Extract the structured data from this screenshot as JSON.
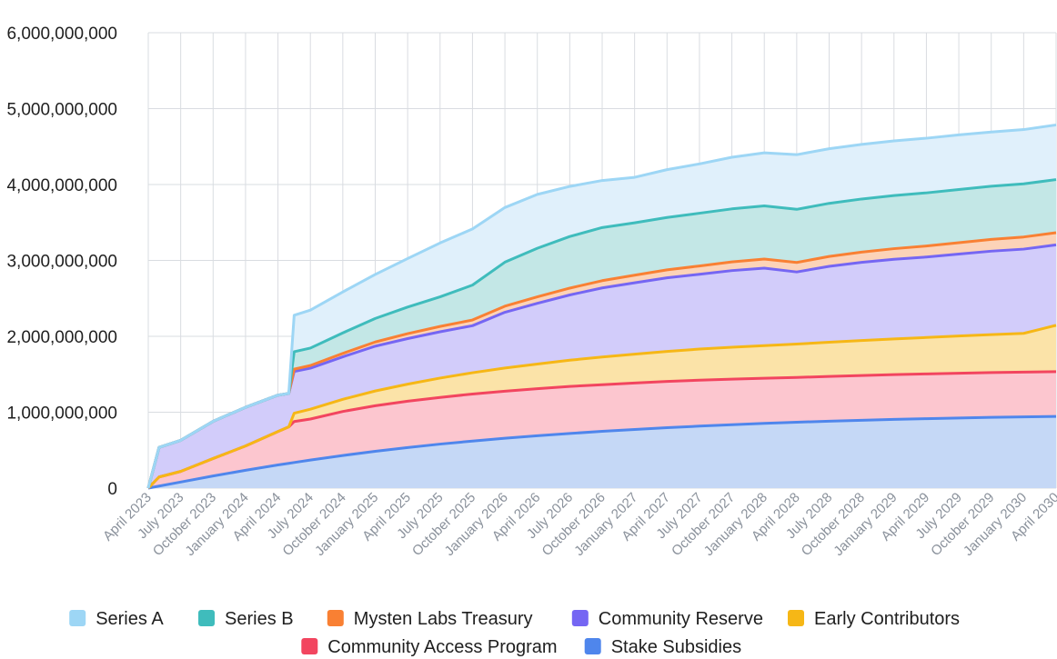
{
  "chart_data": {
    "type": "area",
    "stacked": true,
    "title": "",
    "xlabel": "",
    "ylabel": "",
    "ylim": [
      0,
      6000000000
    ],
    "yticks": [
      0,
      1000000000,
      2000000000,
      3000000000,
      4000000000,
      5000000000,
      6000000000
    ],
    "ytick_labels": [
      "0",
      "1,000,000,000",
      "2,000,000,000",
      "3,000,000,000",
      "4,000,000,000",
      "5,000,000,000",
      "6,000,000,000"
    ],
    "x_range_months": [
      0,
      84
    ],
    "xtick_months": [
      0,
      3,
      6,
      9,
      12,
      15,
      18,
      21,
      24,
      27,
      30,
      33,
      36,
      39,
      42,
      45,
      48,
      51,
      54,
      57,
      60,
      63,
      66,
      69,
      72,
      75,
      78,
      81,
      84
    ],
    "xtick_labels": [
      "April 2023",
      "July 2023",
      "October 2023",
      "January 2024",
      "April 2024",
      "July 2024",
      "October 2024",
      "January 2025",
      "April 2025",
      "July 2025",
      "October 2025",
      "January 2026",
      "April 2026",
      "July 2026",
      "October 2026",
      "January 2027",
      "April 2027",
      "July 2027",
      "October 2027",
      "January 2028",
      "April 2028",
      "July 2028",
      "October 2028",
      "January 2029",
      "April 2029",
      "July 2029",
      "October 2029",
      "January 2030",
      "April 2030"
    ],
    "grid": true,
    "legend_position": "bottom",
    "series": [
      {
        "name": "Stake Subsidies",
        "color": "#4f86ec",
        "fill": "#c5d8f6",
        "points": [
          [
            0,
            0
          ],
          [
            3,
            80000000
          ],
          [
            6,
            160000000
          ],
          [
            9,
            235000000
          ],
          [
            12,
            305000000
          ],
          [
            15,
            370000000
          ],
          [
            18,
            430000000
          ],
          [
            21,
            485000000
          ],
          [
            24,
            535000000
          ],
          [
            27,
            580000000
          ],
          [
            30,
            620000000
          ],
          [
            33,
            657000000
          ],
          [
            36,
            690000000
          ],
          [
            39,
            720000000
          ],
          [
            42,
            748000000
          ],
          [
            45,
            773000000
          ],
          [
            48,
            796000000
          ],
          [
            51,
            817000000
          ],
          [
            54,
            836000000
          ],
          [
            57,
            853000000
          ],
          [
            60,
            868000000
          ],
          [
            63,
            882000000
          ],
          [
            66,
            894000000
          ],
          [
            69,
            905000000
          ],
          [
            72,
            915000000
          ],
          [
            75,
            924000000
          ],
          [
            78,
            932000000
          ],
          [
            81,
            939000000
          ],
          [
            84,
            945000000
          ]
        ]
      },
      {
        "name": "Community Access Program",
        "color": "#f2455f",
        "fill": "#fcc6cf",
        "points": [
          [
            0,
            0
          ],
          [
            1,
            120000000
          ],
          [
            3,
            140000000
          ],
          [
            6,
            230000000
          ],
          [
            9,
            320000000
          ],
          [
            12,
            440000000
          ],
          [
            13,
            480000000
          ],
          [
            13.5,
            540000000
          ],
          [
            15,
            540000000
          ],
          [
            18,
            580000000
          ],
          [
            21,
            600000000
          ],
          [
            24,
            610000000
          ],
          [
            27,
            615000000
          ],
          [
            30,
            620000000
          ],
          [
            33,
            620000000
          ],
          [
            36,
            620000000
          ],
          [
            39,
            620000000
          ],
          [
            42,
            615000000
          ],
          [
            45,
            612000000
          ],
          [
            48,
            610000000
          ],
          [
            51,
            605000000
          ],
          [
            54,
            600000000
          ],
          [
            57,
            595000000
          ],
          [
            60,
            590000000
          ],
          [
            63,
            590000000
          ],
          [
            66,
            590000000
          ],
          [
            69,
            590000000
          ],
          [
            72,
            590000000
          ],
          [
            75,
            590000000
          ],
          [
            78,
            590000000
          ],
          [
            81,
            590000000
          ],
          [
            84,
            590000000
          ]
        ]
      },
      {
        "name": "Early Contributors",
        "color": "#f6b716",
        "fill": "#fbe3a8",
        "points": [
          [
            0,
            0
          ],
          [
            13,
            0
          ],
          [
            13.5,
            110000000
          ],
          [
            15,
            130000000
          ],
          [
            18,
            160000000
          ],
          [
            21,
            195000000
          ],
          [
            24,
            225000000
          ],
          [
            27,
            255000000
          ],
          [
            30,
            280000000
          ],
          [
            33,
            305000000
          ],
          [
            36,
            325000000
          ],
          [
            39,
            345000000
          ],
          [
            42,
            365000000
          ],
          [
            45,
            380000000
          ],
          [
            48,
            395000000
          ],
          [
            51,
            410000000
          ],
          [
            54,
            420000000
          ],
          [
            57,
            430000000
          ],
          [
            60,
            440000000
          ],
          [
            63,
            450000000
          ],
          [
            66,
            460000000
          ],
          [
            69,
            470000000
          ],
          [
            72,
            480000000
          ],
          [
            75,
            490000000
          ],
          [
            78,
            500000000
          ],
          [
            81,
            510000000
          ],
          [
            84,
            610000000
          ]
        ]
      },
      {
        "name": "Community Reserve",
        "color": "#7566f3",
        "fill": "#d2ccfa",
        "points": [
          [
            0,
            0
          ],
          [
            1,
            390000000
          ],
          [
            3,
            410000000
          ],
          [
            6,
            490000000
          ],
          [
            9,
            510000000
          ],
          [
            12,
            480000000
          ],
          [
            13,
            440000000
          ],
          [
            13.5,
            550000000
          ],
          [
            15,
            540000000
          ],
          [
            18,
            560000000
          ],
          [
            21,
            590000000
          ],
          [
            24,
            600000000
          ],
          [
            27,
            610000000
          ],
          [
            30,
            620000000
          ],
          [
            33,
            735000000
          ],
          [
            36,
            800000000
          ],
          [
            39,
            860000000
          ],
          [
            42,
            910000000
          ],
          [
            45,
            940000000
          ],
          [
            48,
            970000000
          ],
          [
            51,
            985000000
          ],
          [
            54,
            1010000000
          ],
          [
            57,
            1020000000
          ],
          [
            60,
            950000000
          ],
          [
            63,
            1000000000
          ],
          [
            66,
            1030000000
          ],
          [
            69,
            1050000000
          ],
          [
            72,
            1060000000
          ],
          [
            75,
            1080000000
          ],
          [
            78,
            1100000000
          ],
          [
            81,
            1110000000
          ],
          [
            84,
            1060000000
          ]
        ]
      },
      {
        "name": "Mysten Labs Treasury",
        "color": "#f98033",
        "fill": "#fcd3b8",
        "points": [
          [
            0,
            0
          ],
          [
            13,
            0
          ],
          [
            13.5,
            30000000
          ],
          [
            15,
            35000000
          ],
          [
            18,
            45000000
          ],
          [
            21,
            55000000
          ],
          [
            24,
            65000000
          ],
          [
            27,
            70000000
          ],
          [
            30,
            75000000
          ],
          [
            33,
            80000000
          ],
          [
            36,
            85000000
          ],
          [
            39,
            90000000
          ],
          [
            42,
            95000000
          ],
          [
            45,
            100000000
          ],
          [
            48,
            105000000
          ],
          [
            51,
            110000000
          ],
          [
            54,
            115000000
          ],
          [
            57,
            120000000
          ],
          [
            60,
            125000000
          ],
          [
            63,
            130000000
          ],
          [
            66,
            135000000
          ],
          [
            69,
            140000000
          ],
          [
            72,
            145000000
          ],
          [
            75,
            150000000
          ],
          [
            78,
            155000000
          ],
          [
            81,
            160000000
          ],
          [
            84,
            160000000
          ]
        ]
      },
      {
        "name": "Series B",
        "color": "#3fbcbc",
        "fill": "#c3e7e6",
        "points": [
          [
            0,
            0
          ],
          [
            13,
            0
          ],
          [
            13.5,
            230000000
          ],
          [
            15,
            230000000
          ],
          [
            18,
            270000000
          ],
          [
            21,
            310000000
          ],
          [
            24,
            350000000
          ],
          [
            27,
            390000000
          ],
          [
            30,
            460000000
          ],
          [
            33,
            580000000
          ],
          [
            36,
            640000000
          ],
          [
            39,
            680000000
          ],
          [
            42,
            700000000
          ],
          [
            45,
            690000000
          ],
          [
            48,
            690000000
          ],
          [
            51,
            695000000
          ],
          [
            54,
            698000000
          ],
          [
            57,
            700000000
          ],
          [
            60,
            700000000
          ],
          [
            63,
            700000000
          ],
          [
            66,
            700000000
          ],
          [
            69,
            700000000
          ],
          [
            72,
            700000000
          ],
          [
            75,
            700000000
          ],
          [
            78,
            700000000
          ],
          [
            81,
            700000000
          ],
          [
            84,
            700000000
          ]
        ]
      },
      {
        "name": "Series A",
        "color": "#9dd6f5",
        "fill": "#e0f0fb",
        "points": [
          [
            0,
            0
          ],
          [
            1,
            0
          ],
          [
            3,
            0
          ],
          [
            6,
            0
          ],
          [
            9,
            0
          ],
          [
            12,
            0
          ],
          [
            13,
            0
          ],
          [
            13.5,
            480000000
          ],
          [
            15,
            500000000
          ],
          [
            18,
            540000000
          ],
          [
            21,
            580000000
          ],
          [
            24,
            640000000
          ],
          [
            27,
            710000000
          ],
          [
            30,
            740000000
          ],
          [
            33,
            720000000
          ],
          [
            36,
            710000000
          ],
          [
            39,
            660000000
          ],
          [
            42,
            620000000
          ],
          [
            45,
            600000000
          ],
          [
            48,
            630000000
          ],
          [
            51,
            650000000
          ],
          [
            54,
            680000000
          ],
          [
            57,
            700000000
          ],
          [
            60,
            720000000
          ],
          [
            63,
            720000000
          ],
          [
            66,
            720000000
          ],
          [
            69,
            720000000
          ],
          [
            72,
            720000000
          ],
          [
            75,
            720000000
          ],
          [
            78,
            715000000
          ],
          [
            81,
            715000000
          ],
          [
            84,
            720000000
          ]
        ]
      }
    ]
  },
  "legend": {
    "row1": [
      {
        "name": "Series A",
        "color": "#9dd6f5"
      },
      {
        "name": "Series B",
        "color": "#3fbcbc"
      },
      {
        "name": "Mysten Labs Treasury",
        "color": "#f98033"
      },
      {
        "name": "Community Reserve",
        "color": "#7566f3"
      },
      {
        "name": "Early Contributors",
        "color": "#f6b716"
      }
    ],
    "row2": [
      {
        "name": "Community Access Program",
        "color": "#f2455f"
      },
      {
        "name": "Stake Subsidies",
        "color": "#4f86ec"
      }
    ]
  }
}
